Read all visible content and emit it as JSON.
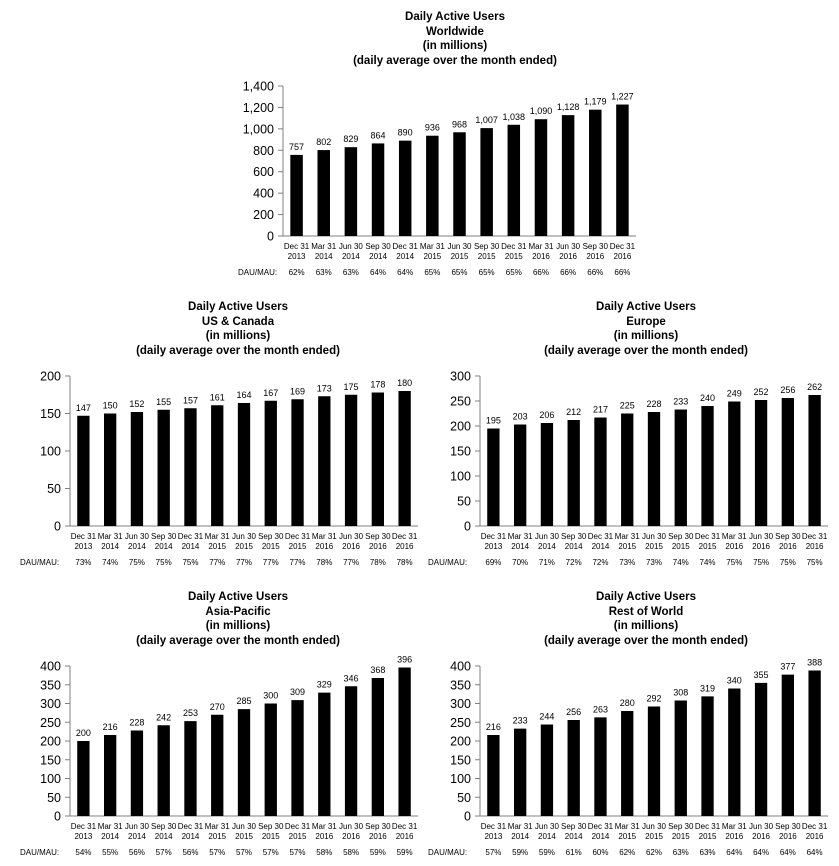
{
  "ratio_label": "DAU/MAU:",
  "categories": [
    [
      "Dec 31",
      "2013"
    ],
    [
      "Mar 31",
      "2014"
    ],
    [
      "Jun 30",
      "2014"
    ],
    [
      "Sep 30",
      "2014"
    ],
    [
      "Dec 31",
      "2014"
    ],
    [
      "Mar 31",
      "2015"
    ],
    [
      "Jun 30",
      "2015"
    ],
    [
      "Sep 30",
      "2015"
    ],
    [
      "Dec 31",
      "2015"
    ],
    [
      "Mar 31",
      "2016"
    ],
    [
      "Jun 30",
      "2016"
    ],
    [
      "Sep 30",
      "2016"
    ],
    [
      "Dec 31",
      "2016"
    ]
  ],
  "colors": {
    "bar": "#000000",
    "axis": "#808080",
    "background": "#ffffff"
  },
  "chart_data": [
    {
      "id": "worldwide",
      "type": "bar",
      "title_lines": [
        "Daily Active Users",
        "Worldwide",
        "(in millions)",
        "(daily average over the month ended)"
      ],
      "values": [
        757,
        802,
        829,
        864,
        890,
        936,
        968,
        1007,
        1038,
        1090,
        1128,
        1179,
        1227
      ],
      "value_labels": [
        "757",
        "802",
        "829",
        "864",
        "890",
        "936",
        "968",
        "1,007",
        "1,038",
        "1,090",
        "1,128",
        "1,179",
        "1,227"
      ],
      "dau_mau": [
        "62%",
        "63%",
        "63%",
        "64%",
        "64%",
        "65%",
        "65%",
        "65%",
        "65%",
        "66%",
        "66%",
        "66%",
        "66%"
      ],
      "ylim": [
        0,
        1400
      ],
      "yticks": [
        0,
        200,
        400,
        600,
        800,
        1000,
        1200,
        1400
      ],
      "ytick_labels": [
        "0",
        "200",
        "400",
        "600",
        "800",
        "1,000",
        "1,200",
        "1,400"
      ],
      "grid": false
    },
    {
      "id": "us-canada",
      "type": "bar",
      "title_lines": [
        "Daily Active Users",
        "US & Canada",
        "(in millions)",
        "(daily average over the month ended)"
      ],
      "values": [
        147,
        150,
        152,
        155,
        157,
        161,
        164,
        167,
        169,
        173,
        175,
        178,
        180
      ],
      "value_labels": [
        "147",
        "150",
        "152",
        "155",
        "157",
        "161",
        "164",
        "167",
        "169",
        "173",
        "175",
        "178",
        "180"
      ],
      "dau_mau": [
        "73%",
        "74%",
        "75%",
        "75%",
        "75%",
        "77%",
        "77%",
        "77%",
        "77%",
        "78%",
        "77%",
        "78%",
        "78%"
      ],
      "ylim": [
        0,
        200
      ],
      "yticks": [
        0,
        50,
        100,
        150,
        200
      ],
      "ytick_labels": [
        "0",
        "50",
        "100",
        "150",
        "200"
      ],
      "grid": false
    },
    {
      "id": "europe",
      "type": "bar",
      "title_lines": [
        "Daily Active Users",
        "Europe",
        "(in millions)",
        "(daily average over the month ended)"
      ],
      "values": [
        195,
        203,
        206,
        212,
        217,
        225,
        228,
        233,
        240,
        249,
        252,
        256,
        262
      ],
      "value_labels": [
        "195",
        "203",
        "206",
        "212",
        "217",
        "225",
        "228",
        "233",
        "240",
        "249",
        "252",
        "256",
        "262"
      ],
      "dau_mau": [
        "69%",
        "70%",
        "71%",
        "72%",
        "72%",
        "73%",
        "73%",
        "74%",
        "74%",
        "75%",
        "75%",
        "75%",
        "75%"
      ],
      "ylim": [
        0,
        300
      ],
      "yticks": [
        0,
        50,
        100,
        150,
        200,
        250,
        300
      ],
      "ytick_labels": [
        "0",
        "50",
        "100",
        "150",
        "200",
        "250",
        "300"
      ],
      "grid": false
    },
    {
      "id": "asia-pacific",
      "type": "bar",
      "title_lines": [
        "Daily Active Users",
        "Asia-Pacific",
        "(in millions)",
        "(daily average over the month ended)"
      ],
      "values": [
        200,
        216,
        228,
        242,
        253,
        270,
        285,
        300,
        309,
        329,
        346,
        368,
        396
      ],
      "value_labels": [
        "200",
        "216",
        "228",
        "242",
        "253",
        "270",
        "285",
        "300",
        "309",
        "329",
        "346",
        "368",
        "396"
      ],
      "dau_mau": [
        "54%",
        "55%",
        "56%",
        "57%",
        "56%",
        "57%",
        "57%",
        "57%",
        "57%",
        "58%",
        "58%",
        "59%",
        "59%"
      ],
      "ylim": [
        0,
        400
      ],
      "yticks": [
        0,
        50,
        100,
        150,
        200,
        250,
        300,
        350,
        400
      ],
      "ytick_labels": [
        "0",
        "50",
        "100",
        "150",
        "200",
        "250",
        "300",
        "350",
        "400"
      ],
      "grid": false
    },
    {
      "id": "rest-of-world",
      "type": "bar",
      "title_lines": [
        "Daily Active Users",
        "Rest of World",
        "(in millions)",
        "(daily average over the month ended)"
      ],
      "values": [
        216,
        233,
        244,
        256,
        263,
        280,
        292,
        308,
        319,
        340,
        355,
        377,
        388
      ],
      "value_labels": [
        "216",
        "233",
        "244",
        "256",
        "263",
        "280",
        "292",
        "308",
        "319",
        "340",
        "355",
        "377",
        "388"
      ],
      "dau_mau": [
        "57%",
        "59%",
        "59%",
        "61%",
        "60%",
        "62%",
        "62%",
        "63%",
        "63%",
        "64%",
        "64%",
        "64%",
        "64%"
      ],
      "ylim": [
        0,
        400
      ],
      "yticks": [
        0,
        50,
        100,
        150,
        200,
        250,
        300,
        350,
        400
      ],
      "ytick_labels": [
        "0",
        "50",
        "100",
        "150",
        "200",
        "250",
        "300",
        "350",
        "400"
      ],
      "grid": false
    }
  ]
}
